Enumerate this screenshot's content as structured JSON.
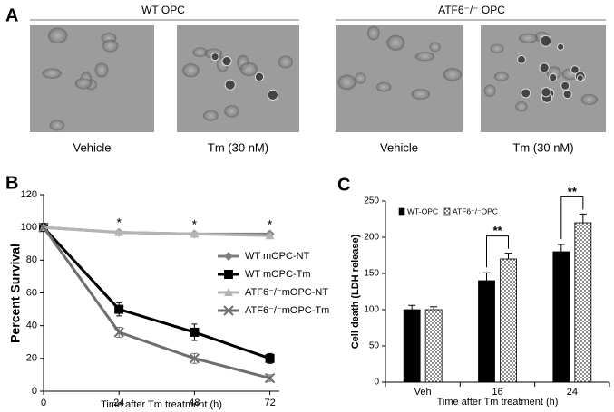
{
  "panels": {
    "a": "A",
    "b": "B",
    "c": "C"
  },
  "micrographs": {
    "groups": [
      "WT OPC",
      "ATF6⁻/⁻ OPC"
    ],
    "labels": [
      "Vehicle",
      "Tm (30 nM)",
      "Vehicle",
      "Tm (30 nM)"
    ]
  },
  "chart_data": [
    {
      "type": "line",
      "xlabel": "Time after Tm treatment (h)",
      "ylabel": "Percent Survival",
      "x": [
        0,
        24,
        48,
        72
      ],
      "xlim": [
        0,
        75
      ],
      "xticks": [
        0,
        24,
        48,
        72
      ],
      "ylim": [
        0,
        120
      ],
      "yticks": [
        0,
        20,
        40,
        60,
        80,
        100,
        120
      ],
      "series": [
        {
          "name": "WT mOPC-NT",
          "color": "#7f7f7f",
          "marker": "diamond",
          "values": [
            100,
            97,
            96,
            96
          ],
          "errors": [
            0,
            1,
            1,
            1
          ]
        },
        {
          "name": "WT mOPC-Tm",
          "color": "#000000",
          "marker": "square",
          "values": [
            100,
            50,
            36,
            20
          ],
          "errors": [
            0,
            4,
            5,
            3
          ]
        },
        {
          "name": "ATF6⁻/⁻mOPC-NT",
          "color": "#b4b4b4",
          "marker": "triangle",
          "values": [
            100,
            97,
            96,
            95
          ],
          "errors": [
            0,
            1,
            1,
            1
          ]
        },
        {
          "name": "ATF6⁻/⁻mOPC-Tm",
          "color": "#6e6e6e",
          "marker": "x",
          "values": [
            100,
            36,
            20,
            8
          ],
          "errors": [
            0,
            3,
            3,
            2
          ]
        }
      ],
      "annotations": [
        "*",
        "*",
        "*"
      ]
    },
    {
      "type": "bar",
      "xlabel": "Time after Tm treatment (h)",
      "ylabel": "Cell death (LDH release)",
      "categories": [
        "Veh",
        "16",
        "24"
      ],
      "ylim": [
        0,
        250
      ],
      "yticks": [
        0,
        50,
        100,
        150,
        200,
        250
      ],
      "series": [
        {
          "name": "WT-OPC",
          "color": "#000000",
          "values": [
            100,
            140,
            180
          ],
          "errors": [
            6,
            11,
            10
          ]
        },
        {
          "name": "ATF6⁻/⁻OPC",
          "color": "#ffffff",
          "pattern": "dots",
          "values": [
            100,
            170,
            220
          ],
          "errors": [
            4,
            8,
            12
          ]
        }
      ],
      "annotations": [
        "**",
        "**"
      ]
    }
  ]
}
